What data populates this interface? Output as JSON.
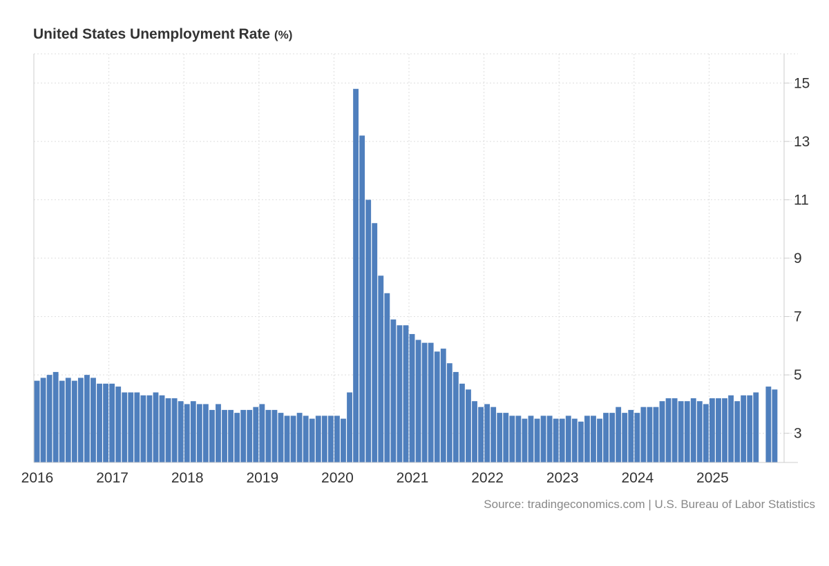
{
  "chart_data": {
    "type": "bar",
    "title": "United States Unemployment Rate",
    "unit": "(%)",
    "source": "Source: tradingeconomics.com | U.S. Bureau of Labor Statistics",
    "x_start": "2016-01",
    "x_ticks": [
      "2016",
      "2017",
      "2018",
      "2019",
      "2020",
      "2021",
      "2022",
      "2023",
      "2024",
      "2025"
    ],
    "y_ticks": [
      "3",
      "5",
      "7",
      "9",
      "11",
      "13",
      "15"
    ],
    "ylim": [
      2,
      16
    ],
    "grid": true,
    "y_axis_side": "right",
    "bar_color": "#4f7fbd",
    "series": [
      {
        "values": [
          4.8,
          4.9,
          5.0,
          5.1,
          4.8,
          4.9,
          4.8,
          4.9,
          5.0,
          4.9,
          4.7,
          4.7,
          4.7,
          4.6,
          4.4,
          4.4,
          4.4,
          4.3,
          4.3,
          4.4,
          4.3,
          4.2,
          4.2,
          4.1,
          4.0,
          4.1,
          4.0,
          4.0,
          3.8,
          4.0,
          3.8,
          3.8,
          3.7,
          3.8,
          3.8,
          3.9,
          4.0,
          3.8,
          3.8,
          3.7,
          3.6,
          3.6,
          3.7,
          3.6,
          3.5,
          3.6,
          3.6,
          3.6,
          3.6,
          3.5,
          4.4,
          14.8,
          13.2,
          11.0,
          10.2,
          8.4,
          7.8,
          6.9,
          6.7,
          6.7,
          6.4,
          6.2,
          6.1,
          6.1,
          5.8,
          5.9,
          5.4,
          5.1,
          4.7,
          4.5,
          4.1,
          3.9,
          4.0,
          3.9,
          3.7,
          3.7,
          3.6,
          3.6,
          3.5,
          3.6,
          3.5,
          3.6,
          3.6,
          3.5,
          3.5,
          3.6,
          3.5,
          3.4,
          3.6,
          3.6,
          3.5,
          3.7,
          3.7,
          3.9,
          3.7,
          3.8,
          3.7,
          3.9,
          3.9,
          3.9,
          4.1,
          4.2,
          4.2,
          4.1,
          4.1,
          4.2,
          4.1,
          4.0,
          4.2,
          4.2,
          4.2,
          4.3,
          4.1,
          4.3,
          4.3,
          4.4,
          null,
          4.6,
          4.5
        ]
      }
    ]
  }
}
